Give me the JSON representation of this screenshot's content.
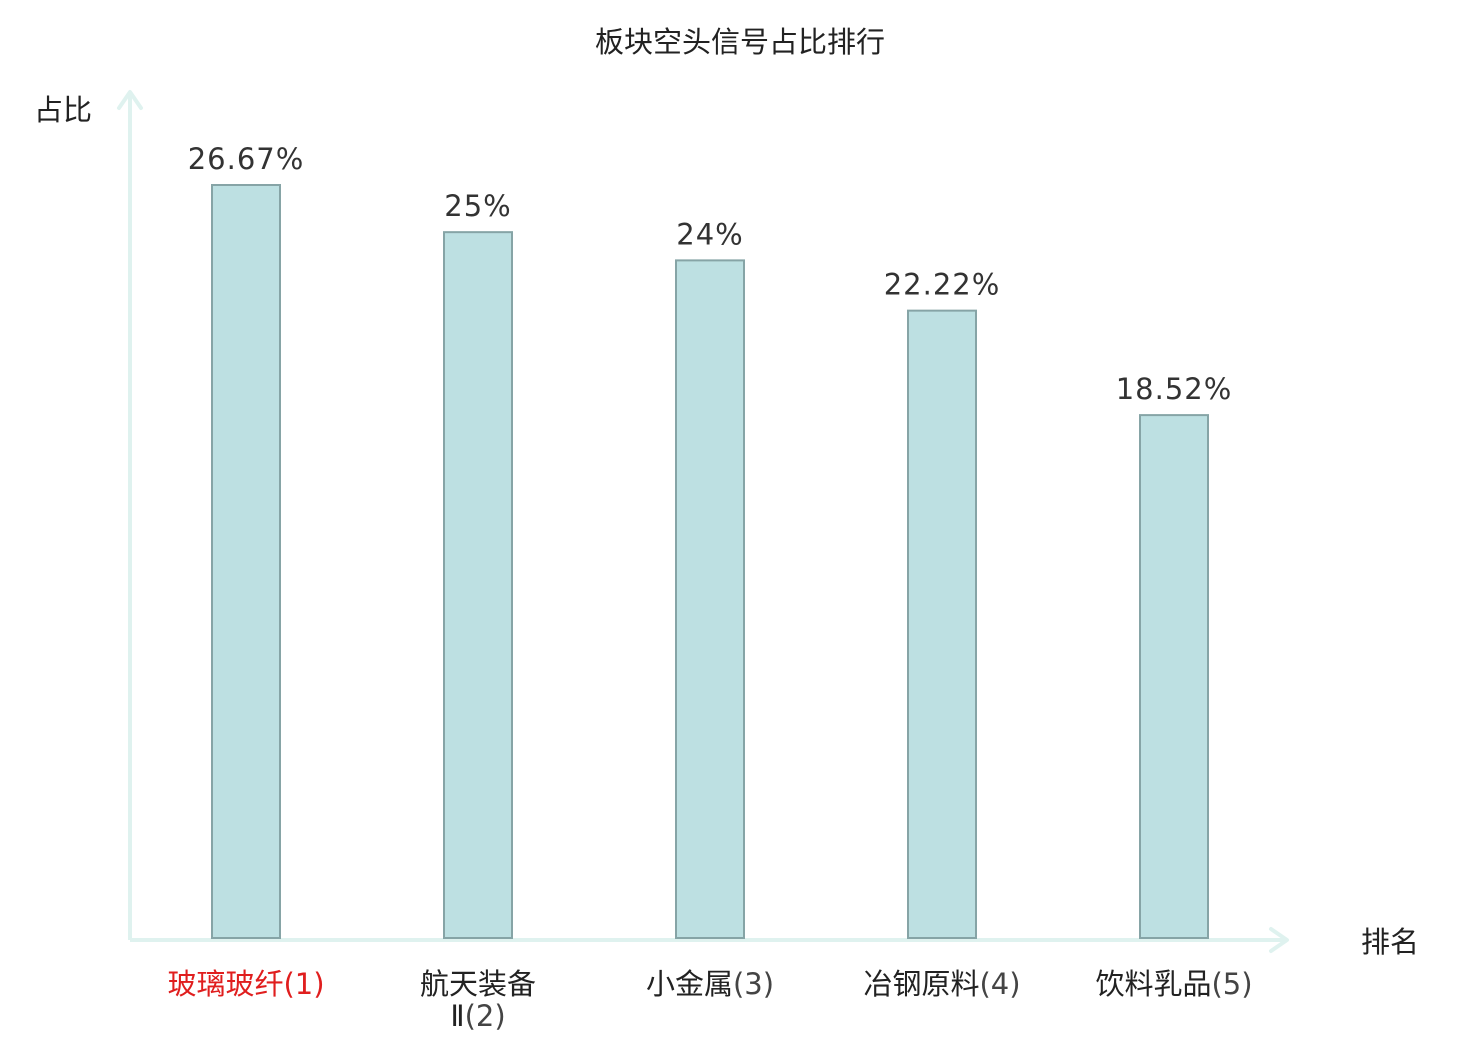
{
  "chart_data": {
    "type": "bar",
    "title": "板块空头信号占比排行",
    "ylabel": "占比",
    "xlabel": "排名",
    "categories": [
      "玻璃玻纤",
      "航天装备Ⅱ",
      "小金属",
      "冶钢原料",
      "饮料乳品"
    ],
    "ranks": [
      "(1)",
      "(2)",
      "(3)",
      "(4)",
      "(5)"
    ],
    "values": [
      26.67,
      25,
      24,
      22.22,
      18.52
    ],
    "value_labels": [
      "26.67%",
      "25%",
      "24%",
      "22.22%",
      "18.52%"
    ],
    "unit": "%",
    "ylim": [
      0,
      26.67
    ],
    "highlight_index": 0,
    "grid": false,
    "legend": "none"
  },
  "colors": {
    "bar_fill": "#bde0e2",
    "bar_stroke": "#86a4a6",
    "axis": "#dff2ef",
    "highlight": "#e01e1e",
    "text": "#222222",
    "value_text": "#333333"
  }
}
